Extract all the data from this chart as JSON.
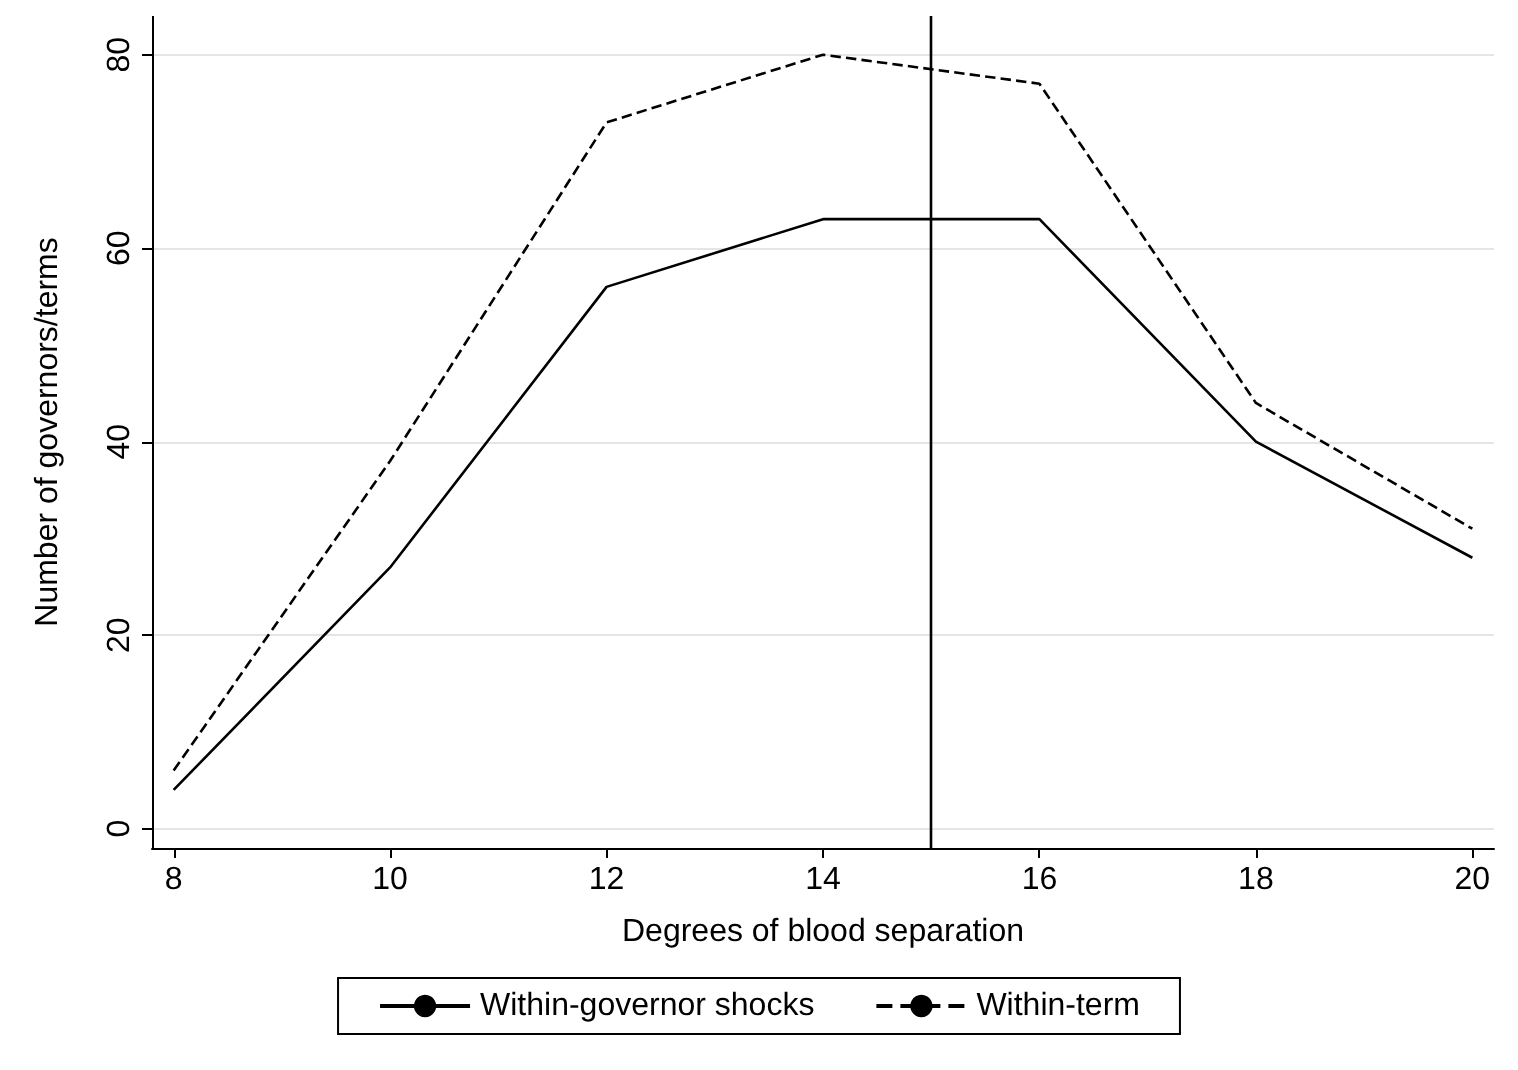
{
  "chart_data": {
    "type": "line",
    "xlabel": "Degrees of blood separation",
    "ylabel": "Number of governors/terms",
    "x": [
      8,
      10,
      12,
      14,
      16,
      18,
      20
    ],
    "series": [
      {
        "name": "Within-governor shocks",
        "color": "#000000",
        "line_style": "solid",
        "values": [
          4,
          27,
          56,
          63,
          63,
          40,
          28
        ]
      },
      {
        "name": "Within-term",
        "color": "#000000",
        "line_style": "dashed",
        "values": [
          6,
          38,
          73,
          80,
          77,
          44,
          31
        ]
      }
    ],
    "xlim": [
      7.8,
      20.2
    ],
    "xticks": [
      8,
      10,
      12,
      14,
      16,
      18,
      20
    ],
    "ylim": [
      -2,
      84
    ],
    "yticks": [
      0,
      20,
      40,
      60,
      80
    ],
    "grid": "y",
    "legend": "bottom",
    "marker": "none",
    "ref_lines": [
      {
        "axis": "x",
        "value": 15,
        "color": "#000000",
        "line_style": "solid"
      }
    ]
  }
}
